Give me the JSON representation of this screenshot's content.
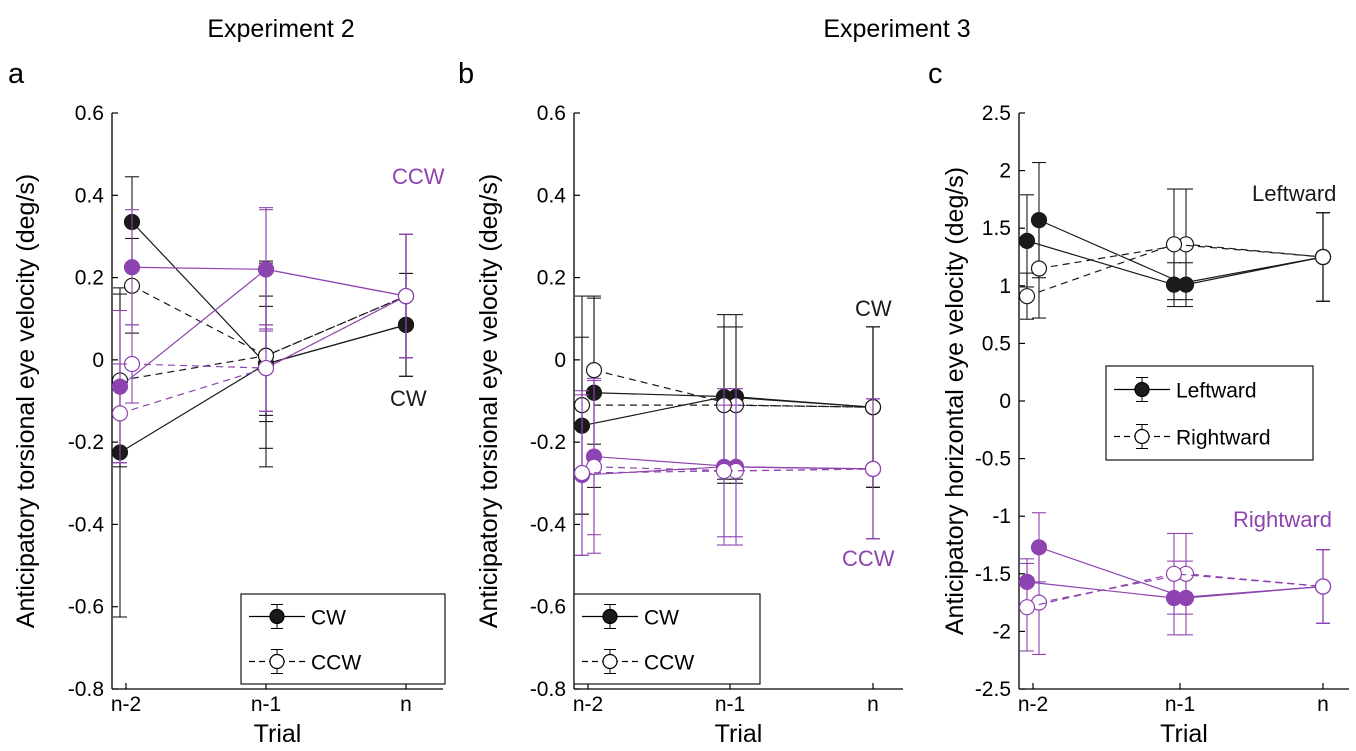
{
  "figure": {
    "titles": {
      "left": "Experiment 2",
      "right": "Experiment 3"
    },
    "panel_letters": [
      "a",
      "b",
      "c"
    ]
  },
  "colors": {
    "cw": "#1a1a1a",
    "ccw": "#8e44b0"
  },
  "chart_data": [
    {
      "type": "line",
      "panel": "a",
      "xlabel": "Trial",
      "ylabel": "Anticipatory torsional eye velocity (deg/s)",
      "ylim": [
        -0.8,
        0.6
      ],
      "yticks": [
        "-0.8",
        "-0.6",
        "-0.4",
        "-0.2",
        "0",
        "0.2",
        "0.4",
        "0.6"
      ],
      "xticks": [
        "n-2",
        "n-1",
        "n"
      ],
      "legend": {
        "position": "bottom-right",
        "entries": [
          "CW",
          "CCW"
        ]
      },
      "annotations": [
        {
          "text": "CCW",
          "color": "ccw"
        },
        {
          "text": "CW",
          "color": "cw"
        }
      ],
      "series": [
        {
          "color": "cw",
          "style": "solid",
          "marker": "filled",
          "x": [
            "n-2",
            "n-1",
            "n"
          ],
          "y": [
            0.335,
            -0.01,
            0.085
          ],
          "err": [
            0.11,
            0.25,
            0.125
          ]
        },
        {
          "color": "cw",
          "style": "solid",
          "marker": "filled",
          "x": [
            "n-2",
            "n-1",
            "n"
          ],
          "y": [
            -0.225,
            -0.01,
            0.085
          ],
          "err": [
            0.4,
            0.14,
            0.125
          ]
        },
        {
          "color": "cw",
          "style": "dashed",
          "marker": "open",
          "x": [
            "n-2",
            "n-1",
            "n"
          ],
          "y": [
            0.18,
            0.01,
            0.155
          ],
          "err": [
            0.115,
            0.225,
            0.15
          ]
        },
        {
          "color": "cw",
          "style": "dashed",
          "marker": "open",
          "x": [
            "n-2",
            "n-1",
            "n"
          ],
          "y": [
            -0.05,
            0.01,
            0.155
          ],
          "err": [
            0.21,
            0.145,
            0.15
          ]
        },
        {
          "color": "ccw",
          "style": "solid",
          "marker": "filled",
          "x": [
            "n-2",
            "n-1",
            "n"
          ],
          "y": [
            0.225,
            0.22,
            0.155
          ],
          "err": [
            0.14,
            0.15,
            0.15
          ]
        },
        {
          "color": "ccw",
          "style": "solid",
          "marker": "filled",
          "x": [
            "n-2",
            "n-1",
            "n"
          ],
          "y": [
            -0.065,
            0.22,
            0.155
          ],
          "err": [
            0.185,
            0.145,
            0.15
          ]
        },
        {
          "color": "ccw",
          "style": "dashed",
          "marker": "open",
          "x": [
            "n-2",
            "n-1",
            "n"
          ],
          "y": [
            -0.01,
            -0.02,
            0.155
          ],
          "err": [
            0.095,
            0.105,
            0.15
          ]
        },
        {
          "color": "ccw",
          "style": "dashed",
          "marker": "open",
          "x": [
            "n-2",
            "n-1",
            "n"
          ],
          "y": [
            -0.13,
            -0.02,
            0.155
          ],
          "err": [
            0.12,
            0.105,
            0.15
          ]
        }
      ]
    },
    {
      "type": "line",
      "panel": "b",
      "xlabel": "Trial",
      "ylabel": "Anticipatory torsional eye velocity (deg/s)",
      "ylim": [
        -0.8,
        0.6
      ],
      "yticks": [
        "-0.8",
        "-0.6",
        "-0.4",
        "-0.2",
        "0",
        "0.2",
        "0.4",
        "0.6"
      ],
      "xticks": [
        "n-2",
        "n-1",
        "n"
      ],
      "legend": {
        "position": "bottom-left",
        "entries": [
          "CW",
          "CCW"
        ]
      },
      "annotations": [
        {
          "text": "CW",
          "color": "cw"
        },
        {
          "text": "CCW",
          "color": "ccw"
        }
      ],
      "series": [
        {
          "color": "cw",
          "style": "solid",
          "marker": "filled",
          "x": [
            "n-2",
            "n-1",
            "n"
          ],
          "y": [
            -0.08,
            -0.09,
            -0.115
          ],
          "err": [
            0.23,
            0.2,
            0.195
          ]
        },
        {
          "color": "cw",
          "style": "solid",
          "marker": "filled",
          "x": [
            "n-2",
            "n-1",
            "n"
          ],
          "y": [
            -0.16,
            -0.09,
            -0.115
          ],
          "err": [
            0.215,
            0.2,
            0.195
          ]
        },
        {
          "color": "cw",
          "style": "dashed",
          "marker": "open",
          "x": [
            "n-2",
            "n-1",
            "n"
          ],
          "y": [
            -0.025,
            -0.11,
            -0.115
          ],
          "err": [
            0.18,
            0.19,
            0.195
          ]
        },
        {
          "color": "cw",
          "style": "dashed",
          "marker": "open",
          "x": [
            "n-2",
            "n-1",
            "n"
          ],
          "y": [
            -0.11,
            -0.11,
            -0.115
          ],
          "err": [
            0.265,
            0.19,
            0.195
          ]
        },
        {
          "color": "ccw",
          "style": "solid",
          "marker": "filled",
          "x": [
            "n-2",
            "n-1",
            "n"
          ],
          "y": [
            -0.235,
            -0.26,
            -0.265
          ],
          "err": [
            0.19,
            0.19,
            0.17
          ]
        },
        {
          "color": "ccw",
          "style": "solid",
          "marker": "filled",
          "x": [
            "n-2",
            "n-1",
            "n"
          ],
          "y": [
            -0.28,
            -0.26,
            -0.265
          ],
          "err": [
            0.195,
            0.19,
            0.17
          ]
        },
        {
          "color": "ccw",
          "style": "dashed",
          "marker": "open",
          "x": [
            "n-2",
            "n-1",
            "n"
          ],
          "y": [
            -0.26,
            -0.27,
            -0.265
          ],
          "err": [
            0.21,
            0.16,
            0.17
          ]
        },
        {
          "color": "ccw",
          "style": "dashed",
          "marker": "open",
          "x": [
            "n-2",
            "n-1",
            "n"
          ],
          "y": [
            -0.275,
            -0.27,
            -0.265
          ],
          "err": [
            0.2,
            0.16,
            0.17
          ]
        }
      ]
    },
    {
      "type": "line",
      "panel": "c",
      "xlabel": "Trial",
      "ylabel": "Anticipatory horizontal eye velocity (deg/s)",
      "ylim": [
        -2.5,
        2.5
      ],
      "yticks": [
        "-2.5",
        "-2",
        "-1.5",
        "-1",
        "-0.5",
        "0",
        "0.5",
        "1",
        "1.5",
        "2",
        "2.5"
      ],
      "xticks": [
        "n-2",
        "n-1",
        "n"
      ],
      "legend": {
        "position": "middle-right",
        "entries": [
          "Leftward",
          "Rightward"
        ]
      },
      "annotations": [
        {
          "text": "Leftward",
          "color": "cw"
        },
        {
          "text": "Rightward",
          "color": "ccw"
        }
      ],
      "series": [
        {
          "color": "cw",
          "style": "solid",
          "marker": "filled",
          "x": [
            "n-2",
            "n-1",
            "n"
          ],
          "y": [
            1.57,
            1.01,
            1.25
          ],
          "err": [
            0.5,
            0.19,
            0.385
          ]
        },
        {
          "color": "cw",
          "style": "solid",
          "marker": "filled",
          "x": [
            "n-2",
            "n-1",
            "n"
          ],
          "y": [
            1.39,
            1.01,
            1.25
          ],
          "err": [
            0.4,
            0.19,
            0.385
          ]
        },
        {
          "color": "cw",
          "style": "dashed",
          "marker": "open",
          "x": [
            "n-2",
            "n-1",
            "n"
          ],
          "y": [
            1.15,
            1.36,
            1.25
          ],
          "err": [
            0.43,
            0.48,
            0.385
          ]
        },
        {
          "color": "cw",
          "style": "dashed",
          "marker": "open",
          "x": [
            "n-2",
            "n-1",
            "n"
          ],
          "y": [
            0.91,
            1.36,
            1.25
          ],
          "err": [
            0.2,
            0.48,
            0.385
          ]
        },
        {
          "color": "ccw",
          "style": "solid",
          "marker": "filled",
          "x": [
            "n-2",
            "n-1",
            "n"
          ],
          "y": [
            -1.27,
            -1.71,
            -1.61
          ],
          "err": [
            0.3,
            0.32,
            0.32
          ]
        },
        {
          "color": "ccw",
          "style": "solid",
          "marker": "filled",
          "x": [
            "n-2",
            "n-1",
            "n"
          ],
          "y": [
            -1.57,
            -1.71,
            -1.61
          ],
          "err": [
            0.2,
            0.32,
            0.32
          ]
        },
        {
          "color": "ccw",
          "style": "dashed",
          "marker": "open",
          "x": [
            "n-2",
            "n-1",
            "n"
          ],
          "y": [
            -1.75,
            -1.5,
            -1.61
          ],
          "err": [
            0.45,
            0.35,
            0.32
          ]
        },
        {
          "color": "ccw",
          "style": "dashed",
          "marker": "open",
          "x": [
            "n-2",
            "n-1",
            "n"
          ],
          "y": [
            -1.79,
            -1.5,
            -1.61
          ],
          "err": [
            0.38,
            0.35,
            0.32
          ]
        }
      ]
    }
  ]
}
